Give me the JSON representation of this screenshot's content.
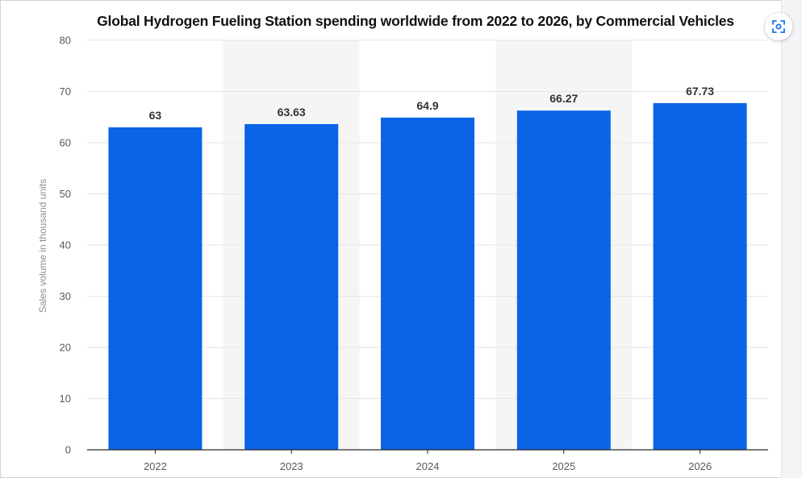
{
  "chart_data": {
    "type": "bar",
    "title": "Global Hydrogen Fueling Station spending worldwide from 2022 to 2026, by Commercial Vehicles",
    "categories": [
      "2022",
      "2023",
      "2024",
      "2025",
      "2026"
    ],
    "values": [
      63,
      63.63,
      64.9,
      66.27,
      67.73
    ],
    "value_labels": [
      "63",
      "63.63",
      "64.9",
      "66.27",
      "67.73"
    ],
    "xlabel": "",
    "ylabel": "Sales volume in thousand units",
    "ylim": [
      0,
      80
    ],
    "yticks": [
      0,
      10,
      20,
      30,
      40,
      50,
      60,
      70,
      80
    ],
    "grid": true,
    "legend": "none",
    "bar_color": "#0b63e5",
    "alternate_band_color": "#f5f5f5"
  },
  "toolbar": {
    "lens_icon": "visual-search-icon"
  }
}
